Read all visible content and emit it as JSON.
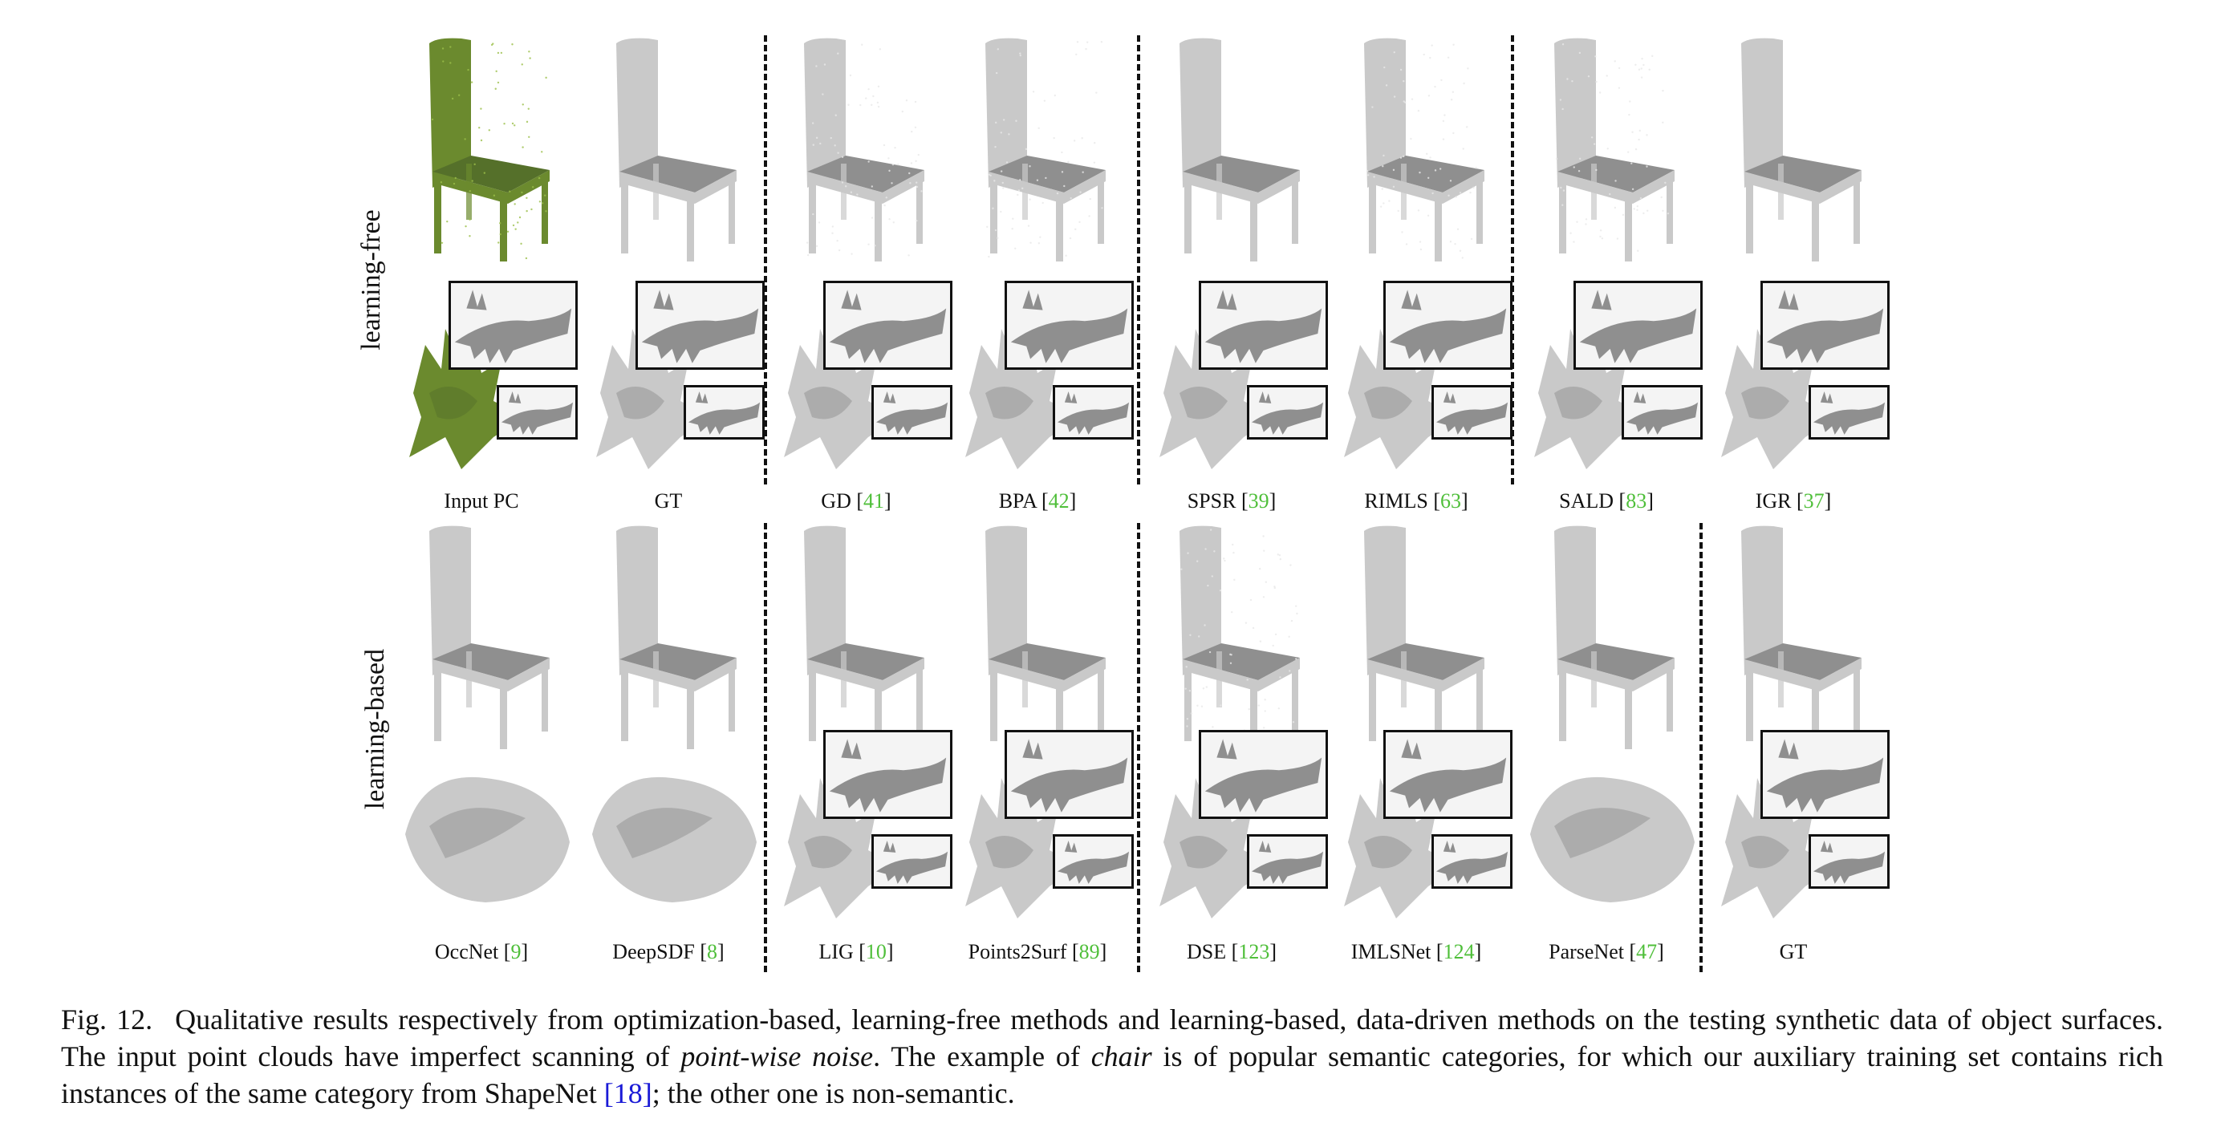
{
  "figure": {
    "row_labels": [
      "learning-free",
      "learning-based"
    ],
    "top_row": [
      {
        "label": "Input PC",
        "ref": "",
        "style": "pc"
      },
      {
        "label": "GT",
        "ref": "",
        "style": "smooth"
      },
      {
        "label": "GD",
        "ref": "41",
        "style": "rough"
      },
      {
        "label": "BPA",
        "ref": "42",
        "style": "rough"
      },
      {
        "label": "SPSR",
        "ref": "39",
        "style": "smooth"
      },
      {
        "label": "RIMLS",
        "ref": "63",
        "style": "rough"
      },
      {
        "label": "SALD",
        "ref": "83",
        "style": "rough"
      },
      {
        "label": "IGR",
        "ref": "37",
        "style": "smooth"
      }
    ],
    "bottom_row": [
      {
        "label": "OccNet",
        "ref": "9",
        "style": "blob"
      },
      {
        "label": "DeepSDF",
        "ref": "8",
        "style": "blob"
      },
      {
        "label": "LIG",
        "ref": "10",
        "style": "smooth"
      },
      {
        "label": "Points2Surf",
        "ref": "89",
        "style": "smooth"
      },
      {
        "label": "DSE",
        "ref": "123",
        "style": "rough"
      },
      {
        "label": "IMLSNet",
        "ref": "124",
        "style": "smooth"
      },
      {
        "label": "ParseNet",
        "ref": "47",
        "style": "blob"
      },
      {
        "label": "GT",
        "ref": "",
        "style": "smooth"
      }
    ]
  },
  "caption": {
    "fig_no": "Fig. 12.",
    "part1": "Qualitative results respectively from optimization-based, learning-free methods and learning-based, data-driven methods on the testing synthetic data of object surfaces. The input point clouds have imperfect scanning of ",
    "italic1": "point-wise noise",
    "part2": ". The example of ",
    "italic2": "chair",
    "part3": " is of popular semantic categories, for which our auxiliary training set contains rich instances of the same category from ShapeNet ",
    "cite": "[18]",
    "part4": "; the other one is non-semantic."
  },
  "colors": {
    "input_pc": "#6b8a2e",
    "mesh": "#c9c9c9",
    "mesh_dark": "#8f8f8f",
    "ref_green": "#4fbf3a",
    "cite_blue": "#1a1ad6"
  }
}
